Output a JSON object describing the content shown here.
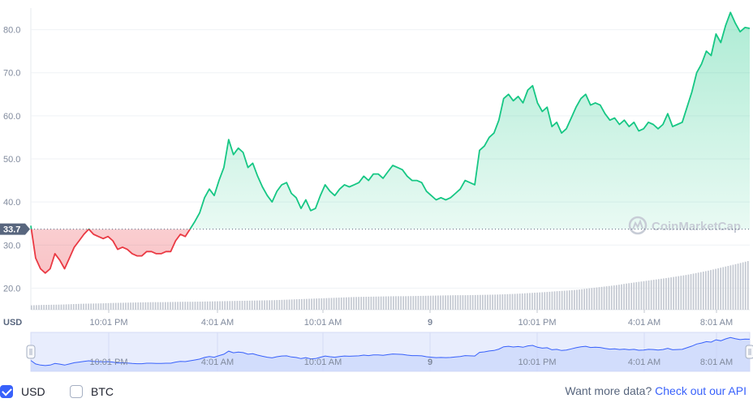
{
  "chart_data": {
    "type": "line",
    "currency_axis_label": "USD",
    "reference_price_label": "33.7",
    "reference_price": 33.7,
    "ylim": [
      15,
      85
    ],
    "y_ticks": [
      {
        "value": 20,
        "label": "20.0"
      },
      {
        "value": 30,
        "label": "30.0"
      },
      {
        "value": 40,
        "label": "40.0"
      },
      {
        "value": 50,
        "label": "50.0"
      },
      {
        "value": 60,
        "label": "60.0"
      },
      {
        "value": 70,
        "label": "70.0"
      },
      {
        "value": 80,
        "label": "80.0"
      }
    ],
    "x_ticks": [
      "10:01 PM",
      "4:01 AM",
      "10:01 AM",
      "9",
      "10:01 PM",
      "4:01 AM",
      "8:01 AM"
    ],
    "grid": true,
    "legend": "bottom-left",
    "colors": {
      "up": "#16c784",
      "down": "#ea3943",
      "volume": "#c3c8d1",
      "navigator": "#3861fb"
    },
    "series": {
      "values": [
        34.5,
        27,
        24.5,
        23.5,
        24.5,
        28,
        26.5,
        24.5,
        27,
        29.5,
        31,
        32.5,
        33.7,
        32.5,
        32,
        31.5,
        32,
        31,
        29,
        29.5,
        29,
        28,
        27.5,
        27.5,
        28.5,
        28.5,
        28,
        28,
        28.5,
        28.5,
        31,
        32.5,
        32,
        33.7,
        35.5,
        37.5,
        41,
        43,
        41.5,
        45,
        48,
        54.5,
        51,
        52.5,
        51.5,
        48,
        49,
        46,
        43.5,
        41.5,
        40,
        42.5,
        44,
        44.5,
        42,
        41,
        38.5,
        40.5,
        38,
        38.5,
        41.5,
        44,
        42.5,
        41.5,
        43,
        44,
        43.5,
        44,
        44.5,
        46,
        45,
        46.5,
        46.5,
        45.5,
        47,
        48.5,
        48,
        47.5,
        46,
        45,
        45,
        44.5,
        42.5,
        41.5,
        40.5,
        41,
        40.5,
        41,
        42,
        43,
        45,
        44.5,
        44,
        52,
        53,
        55,
        56,
        59,
        64,
        65,
        63.5,
        64.5,
        63,
        66,
        67,
        63,
        61,
        62,
        57.5,
        58.5,
        56,
        57,
        59.5,
        62,
        64,
        65,
        62.5,
        63,
        62.5,
        60.5,
        59,
        59.5,
        58,
        59,
        57.5,
        58.5,
        56.5,
        57,
        58.5,
        58,
        57,
        58,
        60.5,
        57.5,
        58,
        58.5,
        62,
        65.5,
        70,
        72,
        75,
        74,
        79,
        77,
        81,
        84,
        81.5,
        79.5,
        80.5,
        80.3
      ]
    },
    "volume": [
      2.2,
      2.4,
      2.5,
      2.6,
      2.8,
      3,
      3.1,
      3.2,
      3.4,
      3.5,
      3.6,
      3.7,
      3.8,
      3.8,
      3.9,
      4,
      4,
      4.1,
      4.2,
      4.3,
      4.4,
      4.5,
      4.6,
      4.7,
      4.8,
      5,
      5.2,
      5.4,
      5.6,
      5.8,
      6,
      6.2,
      6.4,
      6.5,
      6.6,
      6.7,
      6.8,
      6.8,
      6.9,
      7,
      7.1,
      7.2,
      7.3,
      7.3,
      7.4,
      7.5,
      7.6,
      7.8,
      8,
      8.3,
      8.6,
      8.9,
      9.3,
      9.6,
      10,
      10.6,
      11.2,
      11.8,
      12.4,
      13.2,
      13.9,
      14.6,
      15.3,
      16,
      16.8,
      17.6,
      18.6,
      19.6,
      20.8,
      22,
      23.2,
      24.5
    ]
  },
  "legend_items": [
    {
      "label": "USD",
      "checked": true
    },
    {
      "label": "BTC",
      "checked": false
    }
  ],
  "watermark": "CoinMarketCap",
  "api_promo": {
    "text": "Want more data?",
    "link": "Check out our API"
  }
}
